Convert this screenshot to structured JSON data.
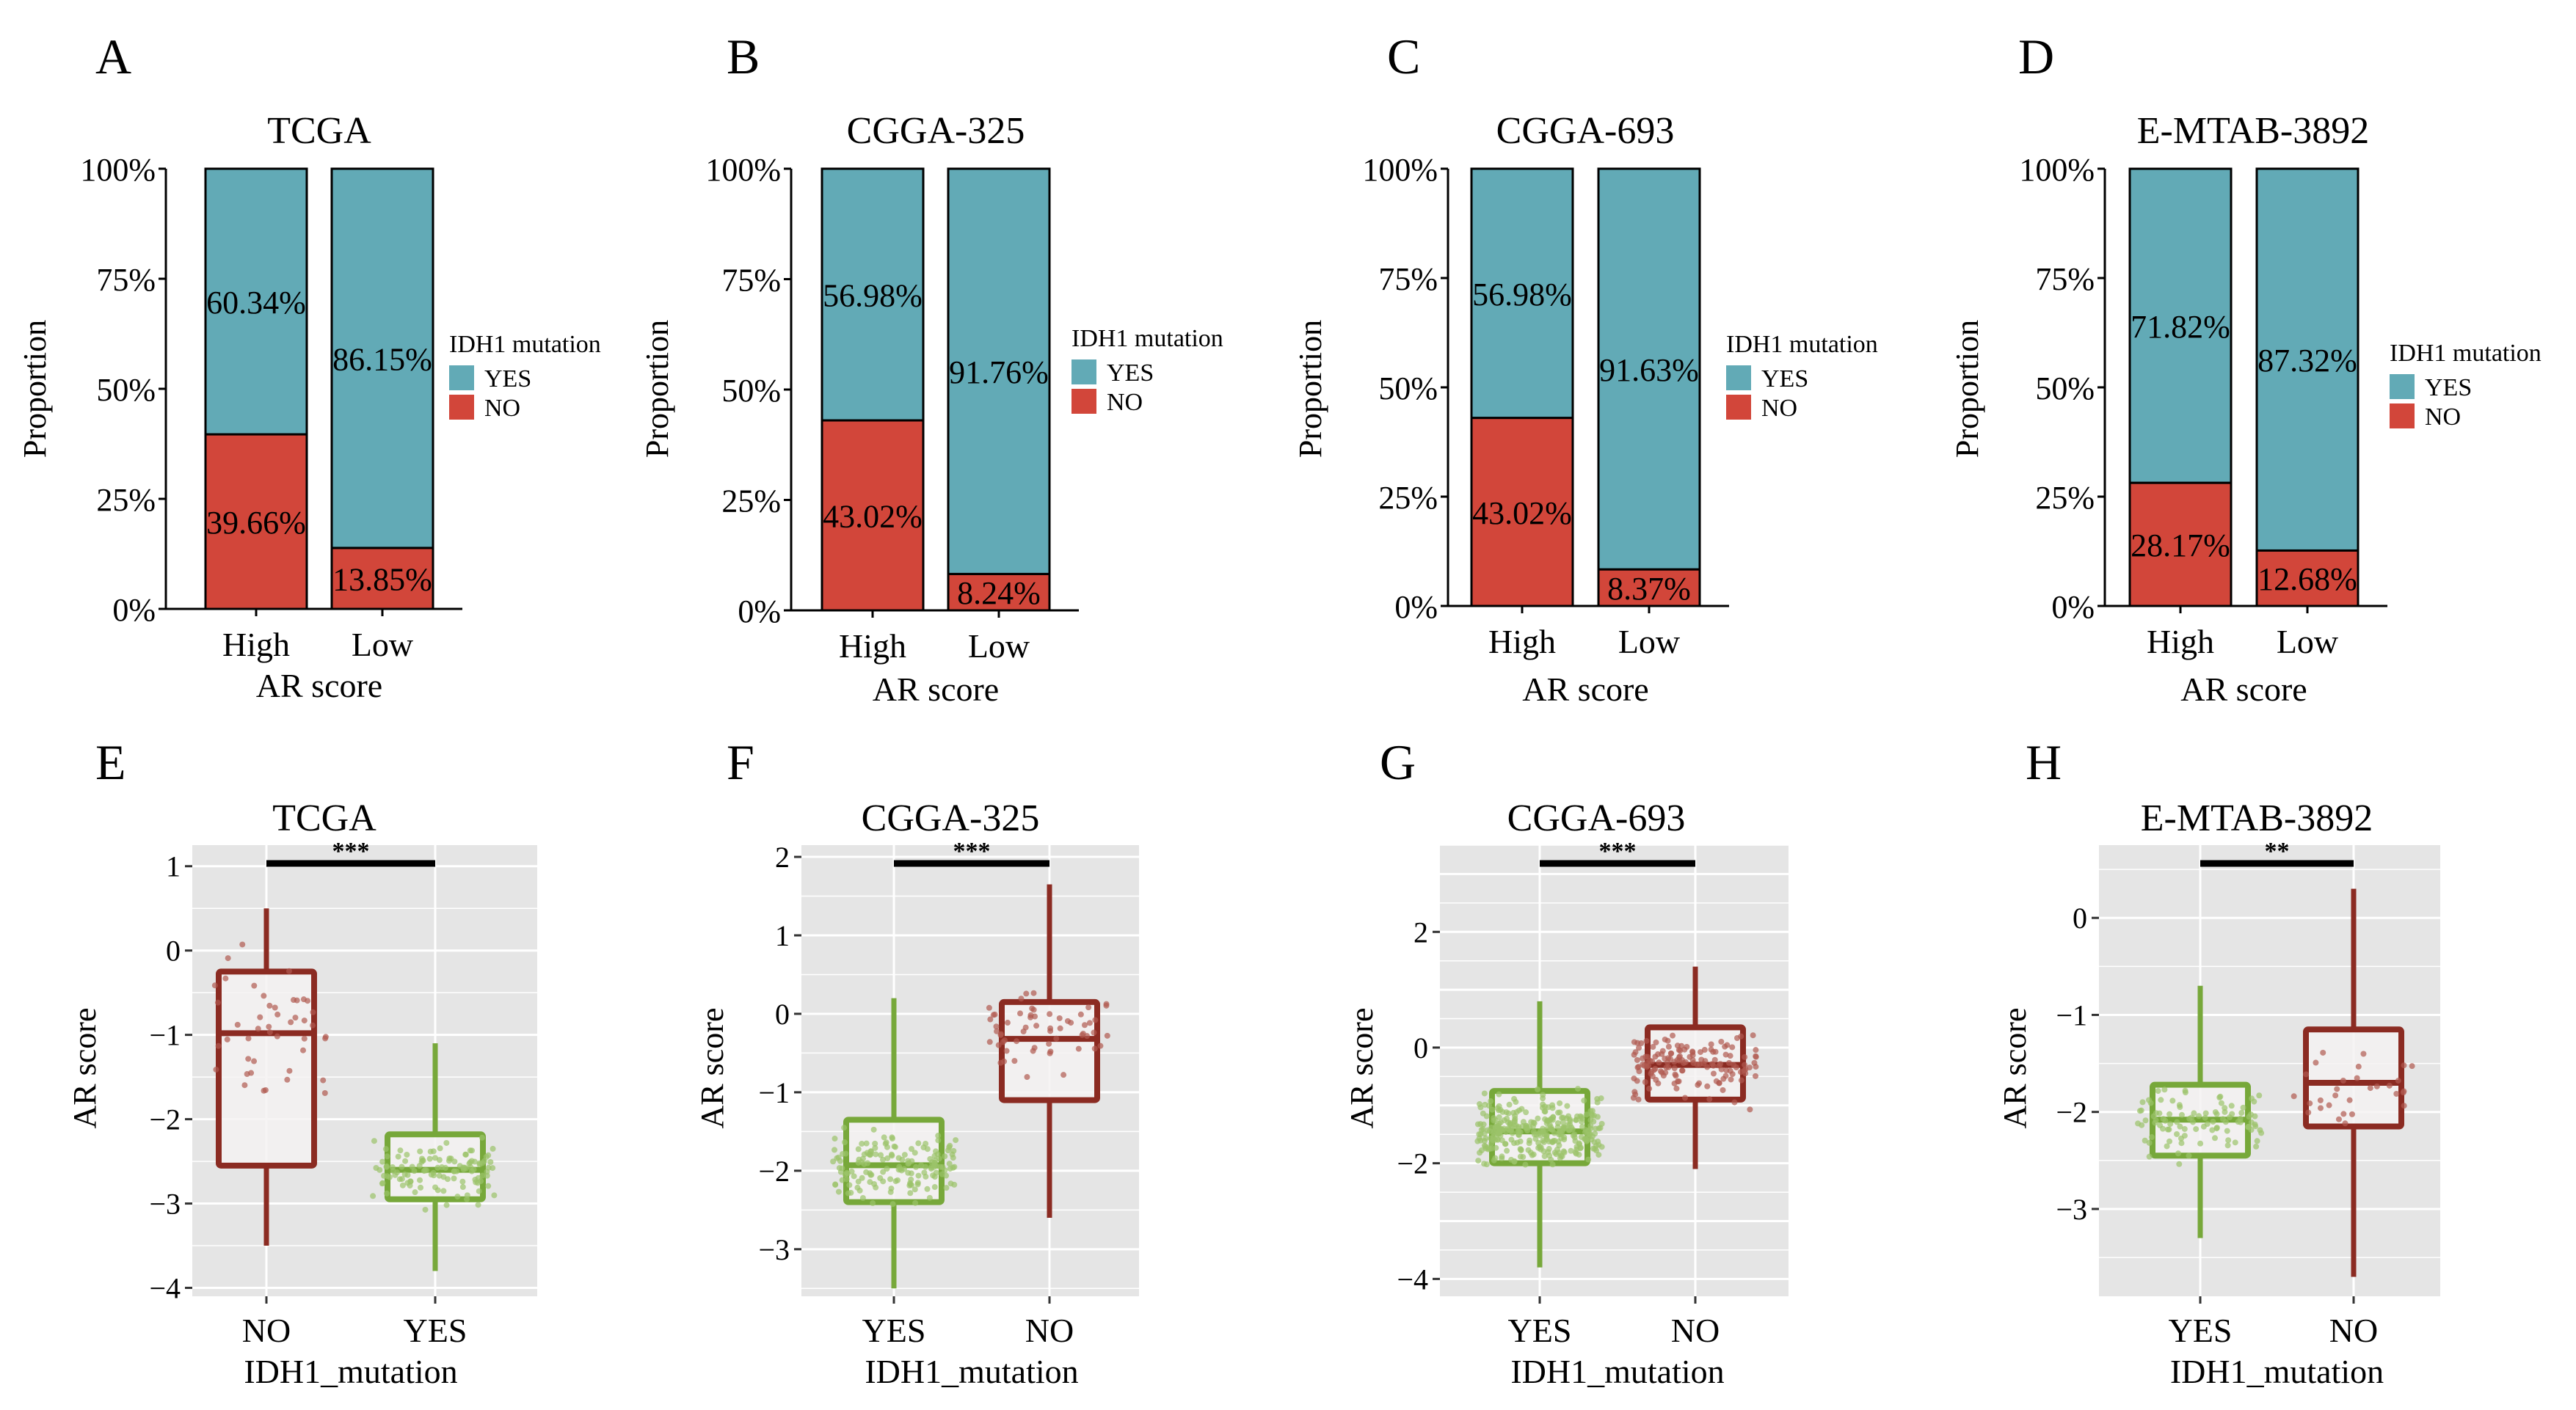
{
  "colors": {
    "yes_fill": "#62aab6",
    "no_fill": "#d2463a",
    "box_yes": "#77a83a",
    "box_no": "#8b2b22",
    "pt_yes": "#9bc36a",
    "pt_no": "#b05a50",
    "panel_bg": "#e5e5e5",
    "box_fill": "#f4f2f2",
    "sig_bar": "#000000"
  },
  "chart_data": [
    {
      "panel": "A",
      "type": "bar",
      "stacked": true,
      "title": "TCGA",
      "xlabel": "AR score",
      "ylabel": "Proportion",
      "categories": [
        "High",
        "Low"
      ],
      "series": [
        {
          "name": "NO",
          "values": [
            39.66,
            13.85
          ],
          "labels": [
            "39.66%",
            "13.85%"
          ]
        },
        {
          "name": "YES",
          "values": [
            60.34,
            86.15
          ],
          "labels": [
            "60.34%",
            "86.15%"
          ]
        }
      ],
      "ylim": [
        0,
        100
      ],
      "yticks": [
        "0%",
        "25%",
        "50%",
        "75%",
        "100%"
      ],
      "legend_title": "IDH1 mutation",
      "legend_items": [
        "YES",
        "NO"
      ]
    },
    {
      "panel": "B",
      "type": "bar",
      "stacked": true,
      "title": "CGGA-325",
      "xlabel": "AR score",
      "ylabel": "Proportion",
      "categories": [
        "High",
        "Low"
      ],
      "series": [
        {
          "name": "NO",
          "values": [
            43.02,
            8.24
          ],
          "labels": [
            "43.02%",
            "8.24%"
          ]
        },
        {
          "name": "YES",
          "values": [
            56.98,
            91.76
          ],
          "labels": [
            "56.98%",
            "91.76%"
          ]
        }
      ],
      "ylim": [
        0,
        100
      ],
      "yticks": [
        "0%",
        "25%",
        "50%",
        "75%",
        "100%"
      ],
      "legend_title": "IDH1 mutation",
      "legend_items": [
        "YES",
        "NO"
      ]
    },
    {
      "panel": "C",
      "type": "bar",
      "stacked": true,
      "title": "CGGA-693",
      "xlabel": "AR score",
      "ylabel": "Proportion",
      "categories": [
        "High",
        "Low"
      ],
      "series": [
        {
          "name": "NO",
          "values": [
            43.02,
            8.37
          ],
          "labels": [
            "43.02%",
            "8.37%"
          ]
        },
        {
          "name": "YES",
          "values": [
            56.98,
            91.63
          ],
          "labels": [
            "56.98%",
            "91.63%"
          ]
        }
      ],
      "ylim": [
        0,
        100
      ],
      "yticks": [
        "0%",
        "25%",
        "50%",
        "75%",
        "100%"
      ],
      "legend_title": "IDH1 mutation",
      "legend_items": [
        "YES",
        "NO"
      ]
    },
    {
      "panel": "D",
      "type": "bar",
      "stacked": true,
      "title": "E-MTAB-3892",
      "xlabel": "AR score",
      "ylabel": "Proportion",
      "categories": [
        "High",
        "Low"
      ],
      "series": [
        {
          "name": "NO",
          "values": [
            28.17,
            12.68
          ],
          "labels": [
            "28.17%",
            "12.68%"
          ]
        },
        {
          "name": "YES",
          "values": [
            71.82,
            87.32
          ],
          "labels": [
            "71.82%",
            "87.32%"
          ]
        }
      ],
      "ylim": [
        0,
        100
      ],
      "yticks": [
        "0%",
        "25%",
        "50%",
        "75%",
        "100%"
      ],
      "legend_title": "IDH1 mutation",
      "legend_items": [
        "YES",
        "NO"
      ]
    },
    {
      "panel": "E",
      "type": "box",
      "title": "TCGA",
      "xlabel": "IDH1_mutation",
      "ylabel": "AR score",
      "ylim": [
        -4.1,
        1.25
      ],
      "yticks": [
        1,
        0,
        -1,
        -2,
        -3,
        -4
      ],
      "ytick_labels": [
        "1",
        "0",
        "−1",
        "−2",
        "−3",
        "−4"
      ],
      "significance": "***",
      "groups": [
        {
          "name": "NO",
          "q1": -2.55,
          "median": -0.98,
          "q3": -0.25,
          "whisker_low": -3.5,
          "whisker_high": 0.5,
          "n_points": 45
        },
        {
          "name": "YES",
          "q1": -2.95,
          "median": -2.6,
          "q3": -2.18,
          "whisker_low": -3.8,
          "whisker_high": -1.1,
          "n_points": 120
        }
      ]
    },
    {
      "panel": "F",
      "type": "box",
      "title": "CGGA-325",
      "xlabel": "IDH1_mutation",
      "ylabel": "AR score",
      "ylim": [
        -3.6,
        2.15
      ],
      "yticks": [
        2,
        1,
        0,
        -1,
        -2,
        -3
      ],
      "ytick_labels": [
        "2",
        "1",
        "0",
        "−1",
        "−2",
        "−3"
      ],
      "significance": "***",
      "groups": [
        {
          "name": "YES",
          "q1": -2.4,
          "median": -1.93,
          "q3": -1.35,
          "whisker_low": -3.5,
          "whisker_high": 0.2,
          "n_points": 160
        },
        {
          "name": "NO",
          "q1": -1.1,
          "median": -0.32,
          "q3": 0.15,
          "whisker_low": -2.6,
          "whisker_high": 1.65,
          "n_points": 60
        }
      ]
    },
    {
      "panel": "G",
      "type": "box",
      "title": "CGGA-693",
      "xlabel": "IDH1_mutation",
      "ylabel": "AR score",
      "ylim": [
        -4.3,
        3.5
      ],
      "yticks": [
        2,
        0,
        -2,
        -4
      ],
      "ytick_labels": [
        "2",
        "0",
        "−2",
        "−4"
      ],
      "significance": "***",
      "groups": [
        {
          "name": "YES",
          "q1": -2.0,
          "median": -1.45,
          "q3": -0.75,
          "whisker_low": -3.8,
          "whisker_high": 0.8,
          "n_points": 330
        },
        {
          "name": "NO",
          "q1": -0.9,
          "median": -0.3,
          "q3": 0.35,
          "whisker_low": -2.1,
          "whisker_high": 1.4,
          "n_points": 150
        }
      ]
    },
    {
      "panel": "H",
      "type": "box",
      "title": "E-MTAB-3892",
      "xlabel": "IDH1_mutation",
      "ylabel": "AR score",
      "ylim": [
        -3.9,
        0.75
      ],
      "yticks": [
        0,
        -1,
        -2,
        -3
      ],
      "ytick_labels": [
        "0",
        "−1",
        "−2",
        "−3"
      ],
      "significance": "**",
      "groups": [
        {
          "name": "YES",
          "q1": -2.45,
          "median": -2.08,
          "q3": -1.72,
          "whisker_low": -3.3,
          "whisker_high": -0.7,
          "n_points": 100
        },
        {
          "name": "NO",
          "q1": -2.15,
          "median": -1.7,
          "q3": -1.15,
          "whisker_low": -3.7,
          "whisker_high": 0.3,
          "n_points": 30
        }
      ]
    }
  ]
}
